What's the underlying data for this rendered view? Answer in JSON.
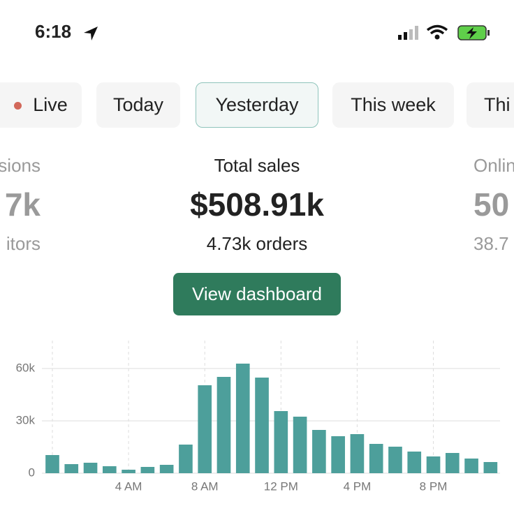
{
  "status_bar": {
    "time": "6:18"
  },
  "tabs": [
    "Live",
    "Today",
    "Yesterday",
    "This week",
    "Thi"
  ],
  "metrics": {
    "left": {
      "label": "sions",
      "value": "7k",
      "sub": "itors"
    },
    "center": {
      "label": "Total sales",
      "value": "$508.91k",
      "sub": "4.73k orders"
    },
    "right": {
      "label": "Onlin",
      "value": "50",
      "sub": "38.7"
    }
  },
  "button": "View dashboard",
  "chart_data": {
    "type": "bar",
    "categories": [
      null,
      null,
      null,
      null,
      "4 AM",
      null,
      null,
      null,
      "8 AM",
      null,
      null,
      null,
      "12 PM",
      null,
      null,
      null,
      "4 PM",
      null,
      null,
      null,
      "8 PM",
      null,
      null,
      null
    ],
    "values": [
      10400,
      5200,
      6000,
      4000,
      2000,
      3600,
      4800,
      16400,
      50400,
      55200,
      62800,
      54800,
      35600,
      32400,
      24800,
      21200,
      22400,
      16800,
      15200,
      12400,
      9600,
      11600,
      8400,
      6400
    ],
    "color": "#4d9f9b",
    "ylim": [
      0,
      76000
    ],
    "yticks": [
      0,
      {
        "value": 30000,
        "label": "30k"
      },
      {
        "value": 60000,
        "label": "60k"
      }
    ],
    "grid": true
  }
}
